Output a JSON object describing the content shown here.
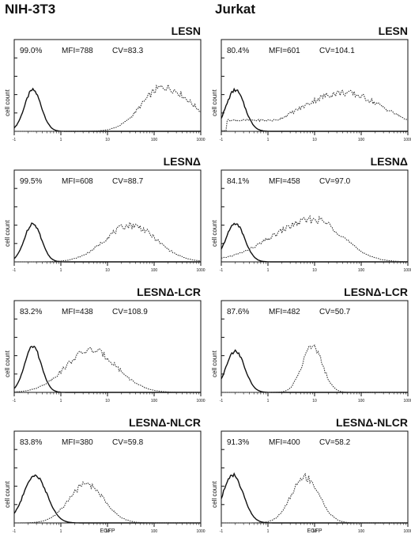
{
  "columns": [
    "NIH-3T3",
    "Jurkat"
  ],
  "chart_data": [
    {
      "type": "area",
      "column": "NIH-3T3",
      "title": "LESN",
      "percent": "99.0%",
      "mfi": "MFI=788",
      "cv": "CV=83.3",
      "ylabel": "cell count",
      "xlabel": "",
      "xscale": "log",
      "xlim": [
        0.1,
        1000
      ],
      "series": [
        {
          "style": "solid",
          "peak_log": -0.6,
          "width": 0.18,
          "height": 0.45,
          "skew": 0.0
        },
        {
          "style": "dotted",
          "peak_log": 2.2,
          "width": 0.55,
          "height": 0.48,
          "skew": 0.3
        }
      ]
    },
    {
      "type": "area",
      "column": "Jurkat",
      "title": "LESN",
      "percent": "80.4%",
      "mfi": "MFI=601",
      "cv": "CV=104.1",
      "ylabel": "cell count",
      "xlabel": "",
      "xscale": "log",
      "xlim": [
        0.1,
        1000
      ],
      "series": [
        {
          "style": "solid",
          "peak_log": -0.7,
          "width": 0.2,
          "height": 0.45,
          "skew": 0.0
        },
        {
          "style": "dotted",
          "peak_log": 1.6,
          "width": 0.9,
          "height": 0.42,
          "skew": 0.0,
          "base": 0.12
        }
      ]
    },
    {
      "type": "area",
      "column": "NIH-3T3",
      "title": "LESNΔ",
      "percent": "99.5%",
      "mfi": "MFI=608",
      "cv": "CV=88.7",
      "ylabel": "cell count",
      "xlabel": "",
      "xscale": "log",
      "xlim": [
        0.1,
        1000
      ],
      "series": [
        {
          "style": "solid",
          "peak_log": -0.6,
          "width": 0.18,
          "height": 0.42,
          "skew": 0.0
        },
        {
          "style": "dotted",
          "peak_log": 1.5,
          "width": 0.55,
          "height": 0.4,
          "skew": 0.0
        }
      ]
    },
    {
      "type": "area",
      "column": "Jurkat",
      "title": "LESNΔ",
      "percent": "84.1%",
      "mfi": "MFI=458",
      "cv": "CV=97.0",
      "ylabel": "cell count",
      "xlabel": "",
      "xscale": "log",
      "xlim": [
        0.1,
        1000
      ],
      "series": [
        {
          "style": "solid",
          "peak_log": -0.7,
          "width": 0.2,
          "height": 0.42,
          "skew": 0.0
        },
        {
          "style": "dotted",
          "peak_log": 1.0,
          "width": 0.75,
          "height": 0.46,
          "skew": -0.4
        }
      ]
    },
    {
      "type": "area",
      "column": "NIH-3T3",
      "title": "LESNΔ-LCR",
      "percent": "83.2%",
      "mfi": "MFI=438",
      "cv": "CV=108.9",
      "ylabel": "cell count",
      "xlabel": "",
      "xscale": "log",
      "xlim": [
        0.1,
        1000
      ],
      "series": [
        {
          "style": "solid",
          "peak_log": -0.6,
          "width": 0.18,
          "height": 0.5,
          "skew": 0.0
        },
        {
          "style": "dotted",
          "peak_log": 0.65,
          "width": 0.55,
          "height": 0.46,
          "skew": 0.0
        }
      ]
    },
    {
      "type": "area",
      "column": "Jurkat",
      "title": "LESNΔ-LCR",
      "percent": "87.6%",
      "mfi": "MFI=482",
      "cv": "CV=50.7",
      "ylabel": "cell count",
      "xlabel": "",
      "xscale": "log",
      "xlim": [
        0.1,
        1000
      ],
      "series": [
        {
          "style": "solid",
          "peak_log": -0.7,
          "width": 0.2,
          "height": 0.45,
          "skew": 0.0
        },
        {
          "style": "dotted",
          "peak_log": 0.95,
          "width": 0.22,
          "height": 0.5,
          "skew": 0.0
        }
      ]
    },
    {
      "type": "area",
      "column": "NIH-3T3",
      "title": "LESNΔ-NLCR",
      "percent": "83.8%",
      "mfi": "MFI=380",
      "cv": "CV=59.8",
      "ylabel": "cell count",
      "xlabel": "EGFP",
      "xscale": "log",
      "xlim": [
        0.1,
        1000
      ],
      "series": [
        {
          "style": "solid",
          "peak_log": -0.55,
          "width": 0.25,
          "height": 0.52,
          "skew": 0.0
        },
        {
          "style": "dotted",
          "peak_log": 0.55,
          "width": 0.38,
          "height": 0.42,
          "skew": 0.0
        }
      ]
    },
    {
      "type": "area",
      "column": "Jurkat",
      "title": "LESNΔ-NLCR",
      "percent": "91.3%",
      "mfi": "MFI=400",
      "cv": "CV=58.2",
      "ylabel": "cell count",
      "xlabel": "EGFP",
      "xscale": "log",
      "xlim": [
        0.1,
        1000
      ],
      "series": [
        {
          "style": "solid",
          "peak_log": -0.75,
          "width": 0.22,
          "height": 0.52,
          "skew": 0.0
        },
        {
          "style": "dotted",
          "peak_log": 0.8,
          "width": 0.3,
          "height": 0.5,
          "skew": 0.0
        }
      ]
    }
  ],
  "xtick_labels": [
    "-1",
    "1",
    "10",
    "100",
    "1000"
  ],
  "ytick_count": 4,
  "colors": {
    "line": "#111111",
    "fill": "#cfcfcf"
  }
}
